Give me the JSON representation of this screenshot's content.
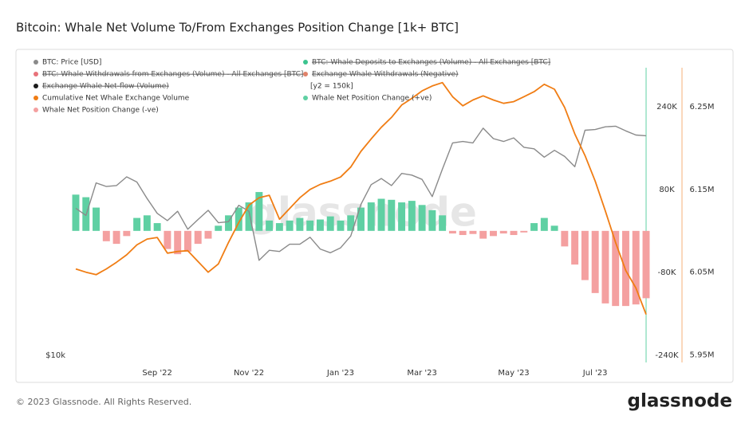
{
  "chart_data": {
    "type": "bar-line",
    "title": "Bitcoin: Whale Net Volume To/From Exchanges Position Change [1k+ BTC]",
    "watermark": "glassnode",
    "legend_note": "[y2 = 150k]",
    "categories": [
      null,
      null,
      null,
      null,
      null,
      null,
      null,
      null,
      "Sep '22",
      null,
      null,
      null,
      null,
      null,
      null,
      null,
      null,
      "Nov '22",
      null,
      null,
      null,
      null,
      null,
      null,
      null,
      null,
      "Jan '23",
      null,
      null,
      null,
      null,
      null,
      null,
      null,
      "Mar '23",
      null,
      null,
      null,
      null,
      null,
      null,
      null,
      null,
      "May '23",
      null,
      null,
      null,
      null,
      null,
      null,
      null,
      "Jul '23",
      null,
      null,
      null,
      null,
      null
    ],
    "yscale": "log",
    "ylim": [
      9660,
      40700
    ],
    "yticks": [
      {
        "value": 10000,
        "label": "$10k"
      }
    ],
    "y2lim": [
      -254000,
      315000
    ],
    "y2ticks": [
      {
        "value": 240000,
        "label": "240K"
      },
      {
        "value": 80000,
        "label": "80K"
      },
      {
        "value": -80000,
        "label": "-80K"
      },
      {
        "value": -240000,
        "label": "-240K"
      }
    ],
    "y3lim": [
      5941000,
      6297000
    ],
    "y3ticks": [
      {
        "value": 6250000,
        "label": "6.25M"
      },
      {
        "value": 6150000,
        "label": "6.15M"
      },
      {
        "value": 6050000,
        "label": "6.05M"
      },
      {
        "value": 5950000,
        "label": "5.95M"
      }
    ],
    "grid": false,
    "series": [
      {
        "name": "BTC: Price [USD]",
        "color": "#8a8a8a",
        "kind": "line",
        "axis": "y",
        "values": [
          20500,
          19800,
          23200,
          22800,
          22900,
          23900,
          23300,
          21500,
          20000,
          19300,
          20200,
          18500,
          19400,
          20300,
          19100,
          19200,
          20800,
          20200,
          15900,
          16700,
          16600,
          17200,
          17200,
          17800,
          16800,
          16500,
          16900,
          17900,
          20900,
          23000,
          23700,
          22900,
          24300,
          24100,
          23600,
          21700,
          24800,
          28200,
          28400,
          28200,
          30300,
          28800,
          28400,
          28900,
          27600,
          27400,
          26300,
          27200,
          26400,
          25100,
          30000,
          30100,
          30500,
          30600,
          29900,
          29300,
          29200
        ]
      },
      {
        "name": "BTC: Whale Deposits to Exchanges (Volume) - All Exchanges [BTC]",
        "color": "#3cc48f",
        "hidden": true
      },
      {
        "name": "BTC: Whale Withdrawals from Exchanges (Volume) - All Exchanges [BTC]",
        "color": "#e8727a",
        "hidden": true
      },
      {
        "name": "Exchange Whale Withdrawals (Negative)",
        "color": "#e0826a",
        "hidden": true
      },
      {
        "name": "Exchange Whale Net-flow (Volume)",
        "color": "#1a1a1a",
        "hidden": true
      },
      {
        "name": "Cumulative Net Whale Exchange Volume",
        "color": "#f07d14",
        "kind": "line",
        "axis": "y3",
        "values": [
          6054000,
          6050000,
          6047000,
          6054000,
          6062000,
          6071000,
          6083000,
          6090000,
          6092000,
          6073000,
          6075000,
          6076000,
          6063000,
          6050000,
          6060000,
          6086000,
          6110000,
          6131000,
          6140000,
          6143000,
          6114000,
          6127000,
          6140000,
          6150000,
          6156000,
          6160000,
          6165000,
          6177000,
          6196000,
          6211000,
          6225000,
          6237000,
          6252000,
          6260000,
          6269000,
          6275000,
          6279000,
          6262000,
          6251000,
          6258000,
          6263000,
          6258000,
          6254000,
          6256000,
          6262000,
          6268000,
          6277000,
          6271000,
          6249000,
          6217000,
          6191000,
          6160000,
          6124000,
          6086000,
          6052000,
          6031000,
          5999000
        ]
      },
      {
        "name": "Whale Net Position Change (+ve)",
        "color": "#5fd0a3",
        "kind": "bar",
        "axis": "y2",
        "values": [
          70000,
          65000,
          45000,
          null,
          null,
          null,
          25000,
          30000,
          15000,
          null,
          null,
          null,
          null,
          null,
          10000,
          30000,
          45000,
          55000,
          75000,
          20000,
          15000,
          20000,
          25000,
          20000,
          22000,
          28000,
          20000,
          30000,
          45000,
          55000,
          62000,
          60000,
          55000,
          58000,
          50000,
          40000,
          30000,
          null,
          null,
          null,
          null,
          null,
          null,
          null,
          null,
          15000,
          25000,
          10000,
          null,
          null,
          null,
          null,
          null,
          null,
          null,
          null,
          null
        ]
      },
      {
        "name": "Whale Net Position Change (-ve)",
        "color": "#f4a0a0",
        "kind": "bar",
        "axis": "y2",
        "values": [
          null,
          null,
          null,
          -20000,
          -25000,
          -10000,
          null,
          null,
          null,
          -35000,
          -45000,
          -40000,
          -25000,
          -15000,
          null,
          null,
          null,
          null,
          null,
          null,
          null,
          null,
          null,
          null,
          null,
          null,
          null,
          null,
          null,
          null,
          null,
          null,
          null,
          null,
          null,
          null,
          null,
          -5000,
          -8000,
          -6000,
          -15000,
          -10000,
          -5000,
          -8000,
          -3000,
          null,
          null,
          null,
          -30000,
          -65000,
          -95000,
          -120000,
          -140000,
          -145000,
          -145000,
          -142000,
          -130000
        ]
      }
    ]
  },
  "footer": {
    "copyright": "© 2023 Glassnode. All Rights Reserved.",
    "logo": "glassnode"
  }
}
